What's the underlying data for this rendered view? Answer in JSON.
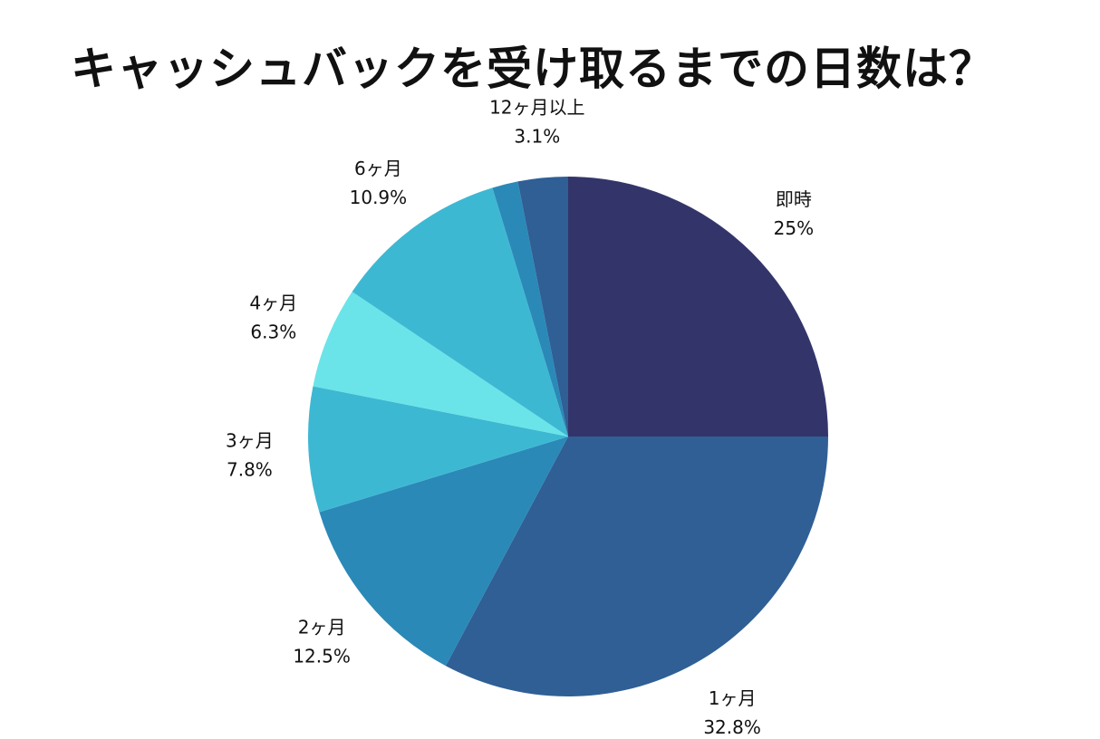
{
  "chart_data": {
    "type": "pie",
    "title": "キャッシュバックを受け取るまでの日数は？",
    "slices": [
      {
        "label": "即時",
        "value": 25.0,
        "value_label": "25%",
        "color": "#33356a"
      },
      {
        "label": "1ヶ月",
        "value": 32.8,
        "value_label": "32.8%",
        "color": "#2f5f95"
      },
      {
        "label": "2ヶ月",
        "value": 12.5,
        "value_label": "12.5%",
        "color": "#2a89b7"
      },
      {
        "label": "3ヶ月",
        "value": 7.8,
        "value_label": "7.8%",
        "color": "#3db8d3"
      },
      {
        "label": "4ヶ月",
        "value": 6.3,
        "value_label": "6.3%",
        "color": "#6ae4e8"
      },
      {
        "label": "6ヶ月",
        "value": 10.9,
        "value_label": "10.9%",
        "color": "#3db8d3"
      },
      {
        "label": "",
        "value": 1.6,
        "value_label": "",
        "color": "#2a89b7"
      },
      {
        "label": "12ヶ月以上",
        "value": 3.1,
        "value_label": "3.1%",
        "color": "#2f5f95"
      }
    ],
    "start_angle_deg": 0,
    "direction": "clockwise",
    "legend": "none"
  }
}
